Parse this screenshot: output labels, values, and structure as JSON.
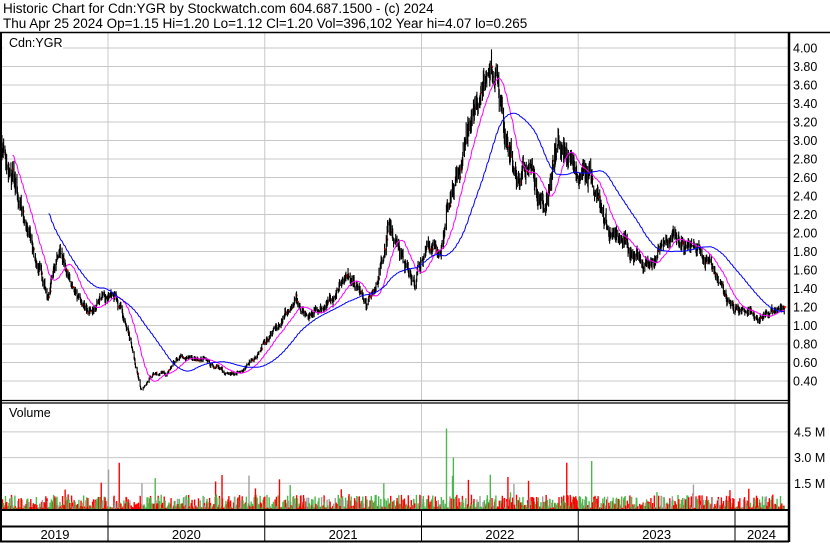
{
  "header": {
    "title": "Historic Chart for Cdn:YGR by Stockwatch.com 604.687.1500 - (c) 2024",
    "quote": "Thu Apr 25 2024  Op=1.15  Hi=1.20  Lo=1.12  Cl=1.20  Vol=396,102  Year hi=4.07  lo=0.265"
  },
  "colors": {
    "bars": "#000000",
    "close_tick": "#ff0000",
    "ma_short": "#ff00ff",
    "ma_long": "#0000ff",
    "vol_up": "#4cb84c",
    "vol_down": "#ff0000",
    "vol_flat": "#a0a0a0",
    "grid": "#c8c8c8"
  },
  "chart_data": [
    {
      "type": "candlestick-ohlc",
      "panel_label": "Cdn:YGR",
      "y_ticks": [
        "0.40",
        "0.60",
        "0.80",
        "1.00",
        "1.20",
        "1.40",
        "1.60",
        "1.80",
        "2.00",
        "2.20",
        "2.40",
        "2.60",
        "2.80",
        "3.00",
        "3.20",
        "3.40",
        "3.60",
        "3.80",
        "4.00"
      ],
      "ylim": [
        0.2,
        4.2
      ],
      "x_categories": [
        "2019",
        "2020",
        "2021",
        "2022",
        "2023",
        "2024"
      ],
      "grid": true,
      "moving_averages": [
        "short (magenta)",
        "long (blue)"
      ],
      "last_bar": {
        "date": "2024-04-25",
        "open": 1.15,
        "high": 1.2,
        "low": 1.12,
        "close": 1.2
      },
      "close_path": [
        [
          "2019-04-15",
          3.1
        ],
        [
          "2019-05-15",
          2.73
        ],
        [
          "2019-06-15",
          2.25
        ],
        [
          "2019-07-15",
          1.7
        ],
        [
          "2019-08-15",
          1.38
        ],
        [
          "2019-09-10",
          1.85
        ],
        [
          "2019-10-15",
          1.33
        ],
        [
          "2019-11-15",
          1.12
        ],
        [
          "2019-12-15",
          1.28
        ],
        [
          "2020-01-15",
          1.38
        ],
        [
          "2020-02-15",
          0.95
        ],
        [
          "2020-03-18",
          0.3
        ],
        [
          "2020-04-15",
          0.47
        ],
        [
          "2020-05-15",
          0.47
        ],
        [
          "2020-06-15",
          0.68
        ],
        [
          "2020-07-15",
          0.63
        ],
        [
          "2020-08-15",
          0.63
        ],
        [
          "2020-09-15",
          0.52
        ],
        [
          "2020-10-15",
          0.47
        ],
        [
          "2020-11-15",
          0.52
        ],
        [
          "2020-12-15",
          0.74
        ],
        [
          "2021-01-15",
          0.9
        ],
        [
          "2021-02-15",
          1.06
        ],
        [
          "2021-03-15",
          1.28
        ],
        [
          "2021-04-15",
          1.06
        ],
        [
          "2021-05-15",
          1.17
        ],
        [
          "2021-06-15",
          1.38
        ],
        [
          "2021-07-15",
          1.55
        ],
        [
          "2021-08-15",
          1.28
        ],
        [
          "2021-09-15",
          1.33
        ],
        [
          "2021-10-15",
          1.98
        ],
        [
          "2021-11-15",
          1.76
        ],
        [
          "2021-12-15",
          1.44
        ],
        [
          "2022-01-15",
          1.87
        ],
        [
          "2022-02-15",
          1.87
        ],
        [
          "2022-03-15",
          2.57
        ],
        [
          "2022-04-15",
          3.11
        ],
        [
          "2022-05-15",
          3.33
        ],
        [
          "2022-06-10",
          3.9
        ],
        [
          "2022-07-15",
          2.9
        ],
        [
          "2022-08-15",
          2.68
        ],
        [
          "2022-09-15",
          2.63
        ],
        [
          "2022-10-15",
          2.3
        ],
        [
          "2022-11-15",
          3.05
        ],
        [
          "2022-12-15",
          2.79
        ],
        [
          "2023-01-15",
          2.73
        ],
        [
          "2023-02-15",
          2.46
        ],
        [
          "2023-03-15",
          1.98
        ],
        [
          "2023-04-15",
          1.87
        ],
        [
          "2023-05-15",
          1.73
        ],
        [
          "2023-06-15",
          1.62
        ],
        [
          "2023-07-15",
          1.87
        ],
        [
          "2023-08-15",
          1.92
        ],
        [
          "2023-09-15",
          1.82
        ],
        [
          "2023-10-15",
          1.76
        ],
        [
          "2023-11-15",
          1.55
        ],
        [
          "2023-12-15",
          1.28
        ],
        [
          "2024-01-15",
          1.22
        ],
        [
          "2024-02-15",
          1.12
        ],
        [
          "2024-03-15",
          1.12
        ],
        [
          "2024-04-25",
          1.2
        ]
      ]
    },
    {
      "type": "bar",
      "panel_label": "Volume",
      "y_ticks": [
        "1.5 M",
        "3.0 M",
        "4.5 M"
      ],
      "ylim": [
        0,
        6000000
      ],
      "grid": true,
      "typical_daily_volume": 300000,
      "volume_spikes": [
        [
          "2020-01-02",
          2300000
        ],
        [
          "2020-01-27",
          2700000
        ],
        [
          "2020-03-20",
          1500000
        ],
        [
          "2020-04-20",
          1800000
        ],
        [
          "2020-12-10",
          1200000
        ],
        [
          "2021-03-01",
          1400000
        ],
        [
          "2021-10-05",
          1500000
        ],
        [
          "2022-02-28",
          4700000
        ],
        [
          "2022-03-16",
          3000000
        ],
        [
          "2022-04-20",
          1700000
        ],
        [
          "2022-06-10",
          2000000
        ],
        [
          "2022-12-05",
          2700000
        ],
        [
          "2023-02-01",
          2800000
        ],
        [
          "2023-12-20",
          1100000
        ]
      ]
    }
  ]
}
